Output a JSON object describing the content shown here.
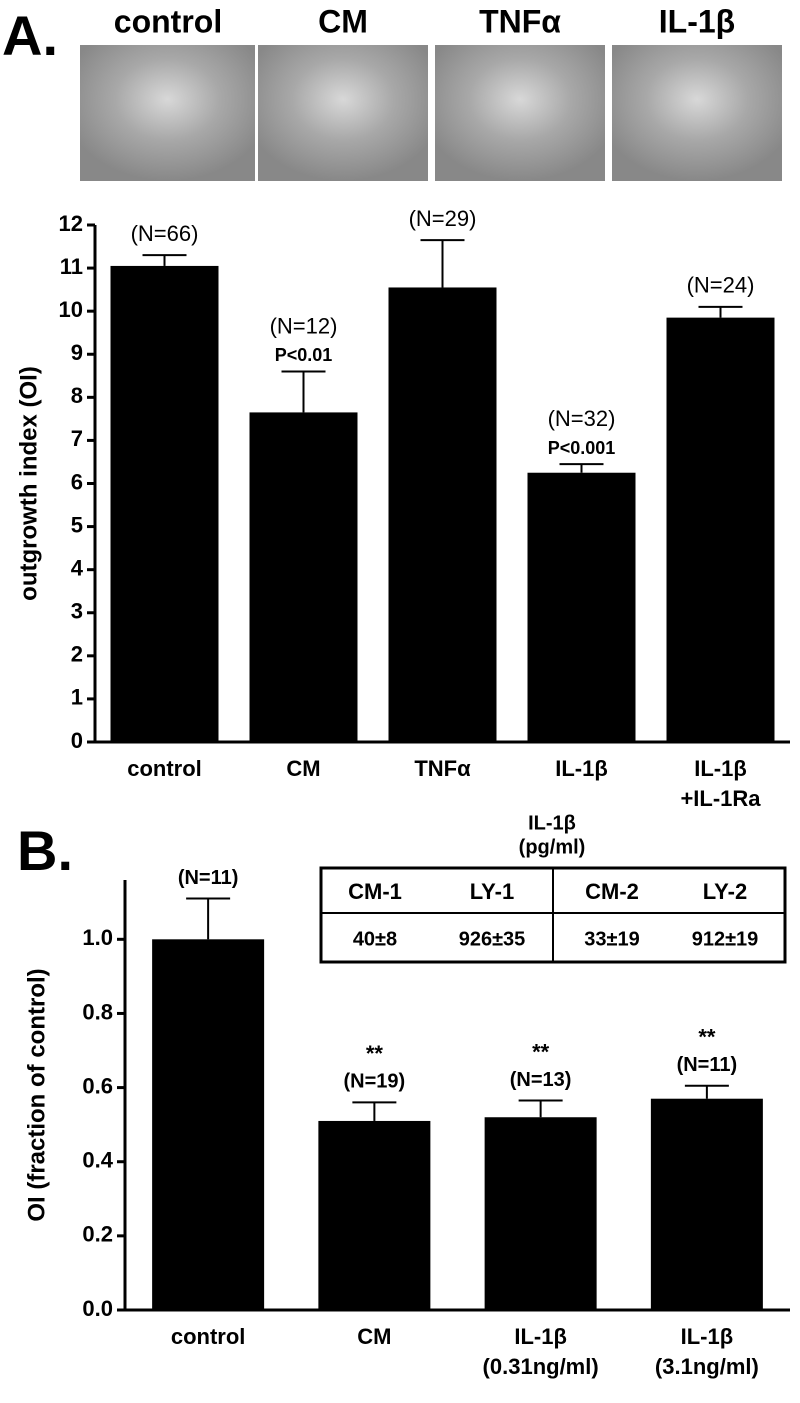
{
  "chart_data": [
    {
      "type": "bar",
      "panel": "A.",
      "image_labels": [
        "control",
        "CM",
        "TNFα",
        "IL-1β"
      ],
      "y_label": "outgrowth index (OI)",
      "categories": [
        [
          "control"
        ],
        [
          "CM"
        ],
        [
          "TNFα"
        ],
        [
          "IL-1β"
        ],
        [
          "IL-1β",
          "+IL-1Ra"
        ]
      ],
      "values": [
        11.05,
        7.65,
        10.55,
        6.25,
        9.85
      ],
      "errors": [
        0.25,
        0.95,
        1.1,
        0.2,
        0.25
      ],
      "n_labels": [
        "(N=66)",
        "(N=12)",
        "(N=29)",
        "(N=32)",
        "(N=24)"
      ],
      "p_labels": [
        null,
        "P<0.01",
        null,
        "P<0.001",
        null
      ],
      "color": "#000000",
      "ylim": [
        0,
        12
      ],
      "yticks": [
        0,
        1,
        2,
        3,
        4,
        5,
        6,
        7,
        8,
        9,
        10,
        11,
        12
      ]
    },
    {
      "type": "bar",
      "panel": "B.",
      "y_label": "OI (fraction of control)",
      "categories": [
        [
          "control"
        ],
        [
          "CM"
        ],
        [
          "IL-1β",
          "(0.31ng/ml)"
        ],
        [
          "IL-1β",
          "(3.1ng/ml)"
        ]
      ],
      "values": [
        1.0,
        0.51,
        0.52,
        0.57
      ],
      "errors": [
        0.11,
        0.05,
        0.045,
        0.035
      ],
      "n_labels": [
        "(N=11)",
        "(N=19)",
        "(N=13)",
        "(N=11)"
      ],
      "sig_labels": [
        null,
        "**",
        "**",
        "**"
      ],
      "color": "#000000",
      "ylim": [
        0,
        1.16
      ],
      "yticks": [
        {
          "value": 0,
          "label": "0.0"
        },
        {
          "value": 0.2,
          "label": "0.2"
        },
        {
          "value": 0.4,
          "label": "0.4"
        },
        {
          "value": 0.6,
          "label": "0.6"
        },
        {
          "value": 0.8,
          "label": "0.8"
        },
        {
          "value": 1,
          "label": "1.0"
        }
      ],
      "table": {
        "title": [
          "IL-1β",
          "(pg/ml)"
        ],
        "header": [
          "CM-1",
          "LY-1",
          "CM-2",
          "LY-2"
        ],
        "row": [
          "40±8",
          "926±35",
          "33±19",
          "912±19"
        ]
      }
    }
  ]
}
